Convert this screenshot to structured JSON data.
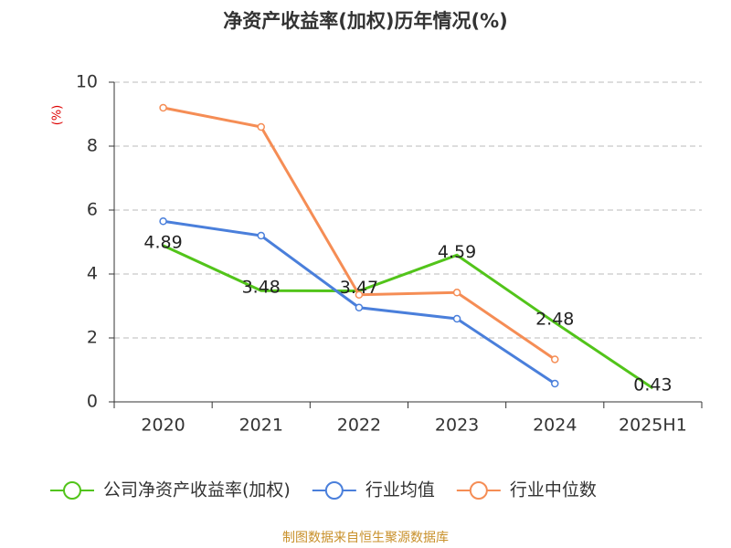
{
  "chart_data": {
    "type": "line",
    "title": "净资产收益率(加权)历年情况(%)",
    "y_label": "(%)",
    "categories": [
      "2020",
      "2021",
      "2022",
      "2023",
      "2024",
      "2025H1"
    ],
    "series": [
      {
        "name": "公司净资产收益率(加权)",
        "color": "#52c41a",
        "values": [
          4.89,
          3.48,
          3.47,
          4.59,
          2.48,
          0.43
        ],
        "show_labels": true
      },
      {
        "name": "行业均值",
        "color": "#4a7fdb",
        "values": [
          5.65,
          5.2,
          2.95,
          2.6,
          0.57,
          null
        ],
        "show_labels": false
      },
      {
        "name": "行业中位数",
        "color": "#f58d55",
        "values": [
          9.2,
          8.6,
          3.35,
          3.42,
          1.33,
          null
        ],
        "show_labels": false
      }
    ],
    "ylim": [
      0,
      10
    ],
    "yticks": [
      0,
      2,
      4,
      6,
      8,
      10
    ],
    "grid": true,
    "source": "制图数据来自恒生聚源数据库"
  }
}
